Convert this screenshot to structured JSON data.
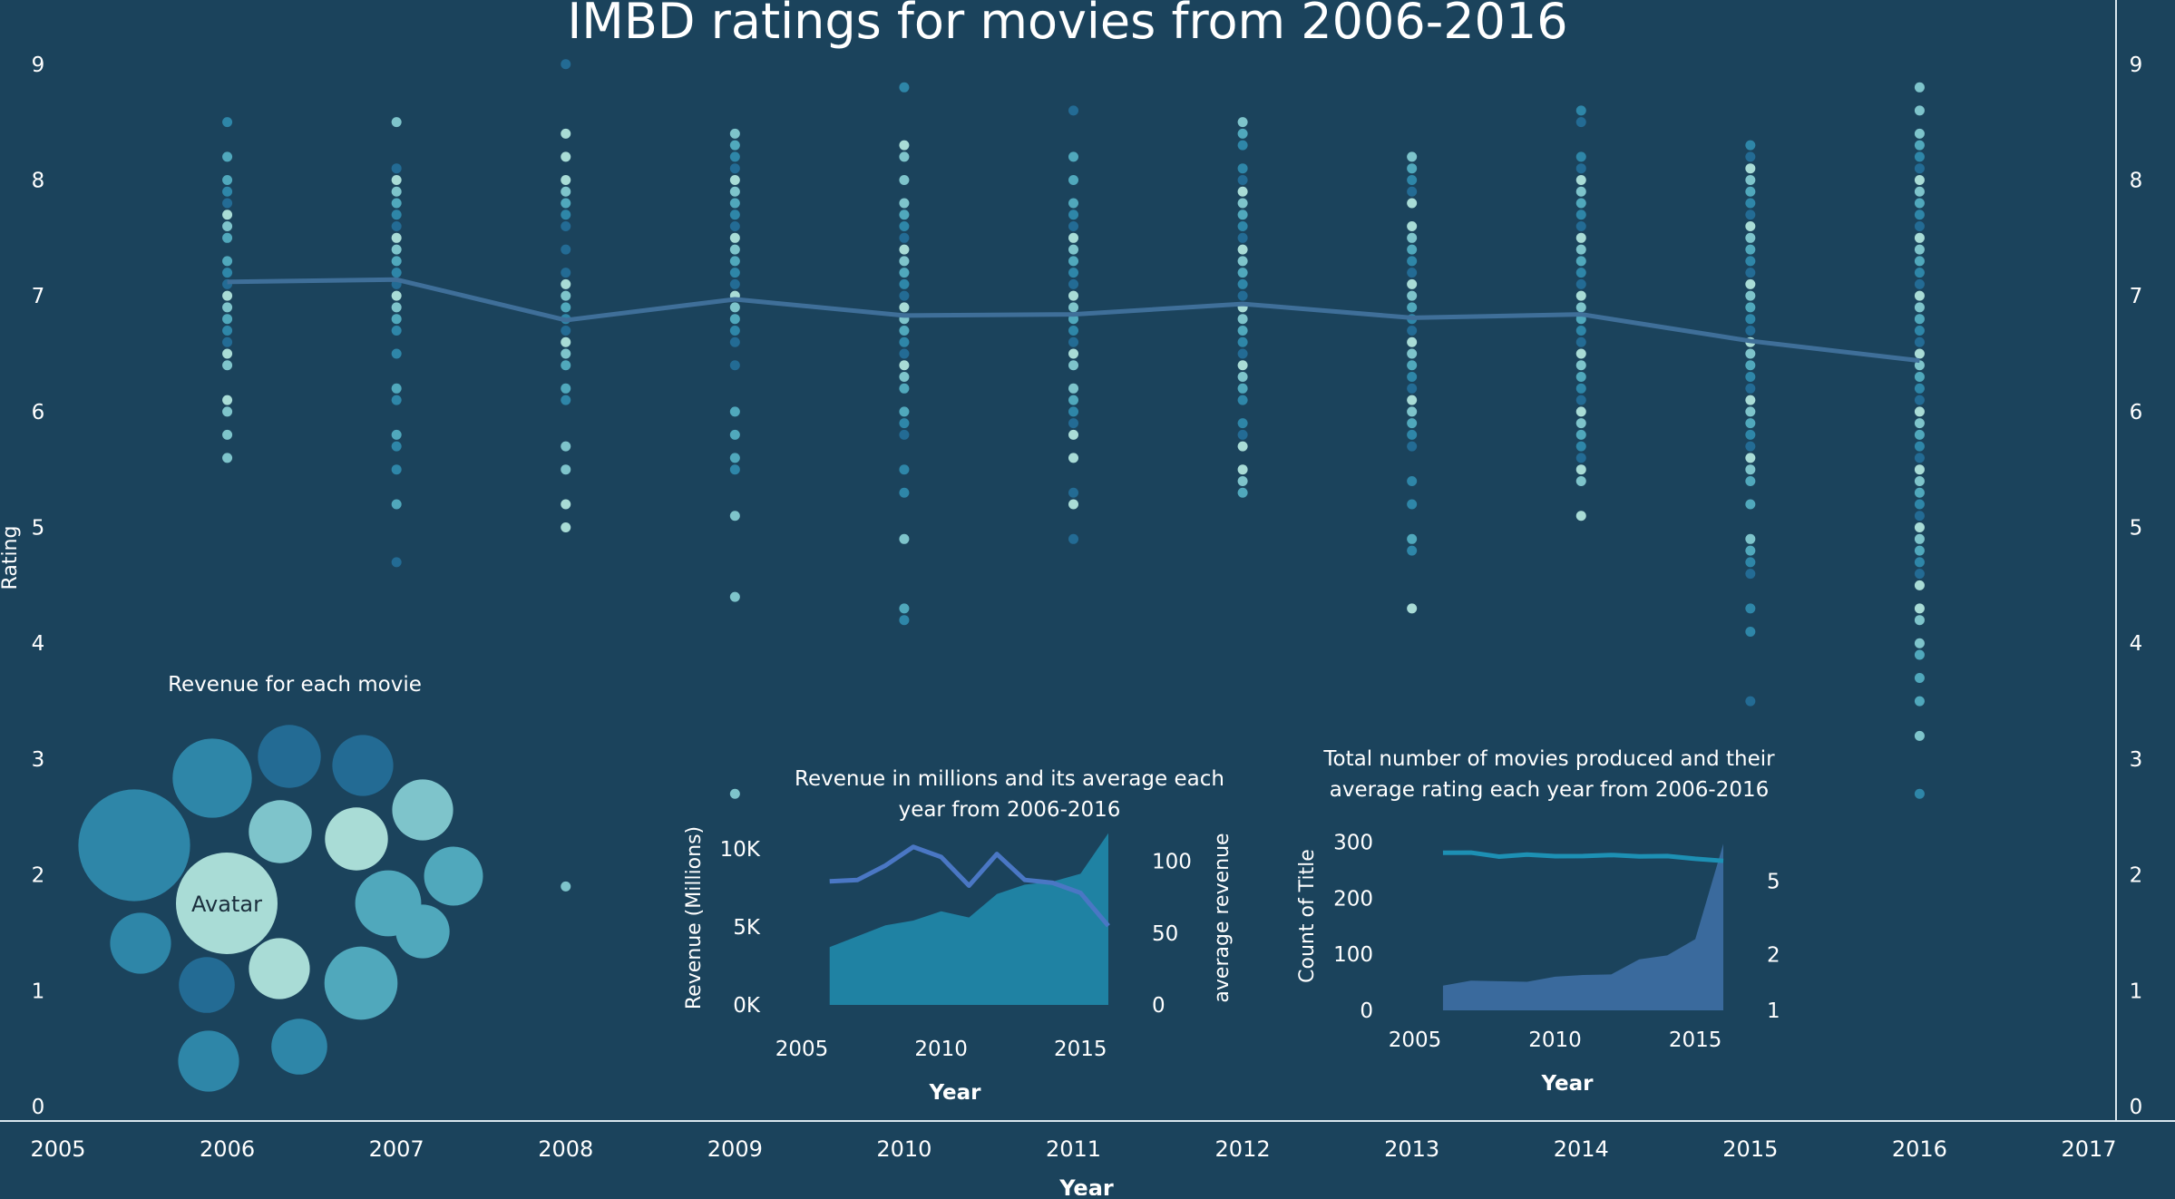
{
  "colors": {
    "background": "#1b435c",
    "axis": "#d9e6ee",
    "text": "#ffffff",
    "trend_line": "#3f6f99",
    "revenue_area": "#1f82a3",
    "revenue_line": "#4a77c4",
    "count_line": "#1d90b4",
    "count_area": "#3a6a9d",
    "dot_palette": [
      "#a9dcd6",
      "#7ec4cb",
      "#50a8bc",
      "#2e86a8",
      "#236b94"
    ]
  },
  "chart_data": [
    {
      "id": "main",
      "type": "scatter",
      "title": "IMBD ratings for movies from 2006-2016",
      "xlabel": "Year",
      "ylabel": "Rating",
      "xlim": [
        2005,
        2017
      ],
      "ylim": [
        0,
        9.1
      ],
      "x_ticks": [
        "2005",
        "2006",
        "2007",
        "2008",
        "2009",
        "2010",
        "2011",
        "2012",
        "2013",
        "2014",
        "2015",
        "2016",
        "2017"
      ],
      "y_ticks": [
        "0",
        "1",
        "2",
        "3",
        "4",
        "5",
        "6",
        "7",
        "8",
        "9"
      ],
      "grid": false,
      "points": [
        {
          "year": 2006,
          "ratings": [
            8.5,
            8.2,
            8.0,
            7.9,
            7.8,
            7.7,
            7.6,
            7.5,
            7.3,
            7.2,
            7.1,
            7.0,
            6.9,
            6.8,
            6.7,
            6.6,
            6.5,
            6.4,
            6.1,
            6.0,
            5.8,
            5.6
          ]
        },
        {
          "year": 2007,
          "ratings": [
            8.5,
            8.1,
            8.0,
            7.9,
            7.8,
            7.7,
            7.6,
            7.5,
            7.4,
            7.3,
            7.2,
            7.1,
            7.0,
            6.9,
            6.8,
            6.7,
            6.5,
            6.2,
            6.1,
            5.8,
            5.7,
            5.5,
            5.2,
            4.7
          ]
        },
        {
          "year": 2008,
          "ratings": [
            9.0,
            8.4,
            8.2,
            8.0,
            7.9,
            7.8,
            7.7,
            7.6,
            7.4,
            7.2,
            7.1,
            7.0,
            6.9,
            6.8,
            6.7,
            6.6,
            6.5,
            6.4,
            6.2,
            6.1,
            5.7,
            5.5,
            5.2,
            5.0,
            1.9
          ]
        },
        {
          "year": 2009,
          "ratings": [
            8.4,
            8.3,
            8.2,
            8.1,
            8.0,
            7.9,
            7.8,
            7.7,
            7.6,
            7.5,
            7.4,
            7.3,
            7.2,
            7.1,
            7.0,
            6.9,
            6.8,
            6.7,
            6.6,
            6.4,
            6.0,
            5.8,
            5.6,
            5.5,
            5.1,
            4.4,
            2.7
          ]
        },
        {
          "year": 2010,
          "ratings": [
            8.8,
            8.3,
            8.2,
            8.0,
            7.8,
            7.7,
            7.6,
            7.5,
            7.4,
            7.3,
            7.2,
            7.1,
            7.0,
            6.9,
            6.8,
            6.7,
            6.6,
            6.5,
            6.4,
            6.3,
            6.2,
            6.0,
            5.9,
            5.8,
            5.5,
            5.3,
            4.9,
            4.3,
            4.2
          ]
        },
        {
          "year": 2011,
          "ratings": [
            8.6,
            8.2,
            8.0,
            7.8,
            7.7,
            7.6,
            7.5,
            7.4,
            7.3,
            7.2,
            7.1,
            7.0,
            6.9,
            6.8,
            6.7,
            6.6,
            6.5,
            6.4,
            6.2,
            6.1,
            6.0,
            5.9,
            5.8,
            5.6,
            5.3,
            5.2,
            4.9
          ]
        },
        {
          "year": 2012,
          "ratings": [
            8.5,
            8.4,
            8.3,
            8.1,
            8.0,
            7.9,
            7.8,
            7.7,
            7.6,
            7.5,
            7.4,
            7.3,
            7.2,
            7.1,
            7.0,
            6.9,
            6.8,
            6.7,
            6.6,
            6.5,
            6.4,
            6.3,
            6.2,
            6.1,
            5.9,
            5.8,
            5.7,
            5.5,
            5.4,
            5.3
          ]
        },
        {
          "year": 2013,
          "ratings": [
            8.2,
            8.1,
            8.0,
            7.9,
            7.8,
            7.6,
            7.5,
            7.4,
            7.3,
            7.2,
            7.1,
            7.0,
            6.9,
            6.8,
            6.7,
            6.6,
            6.5,
            6.4,
            6.3,
            6.2,
            6.1,
            6.0,
            5.9,
            5.8,
            5.7,
            5.4,
            5.2,
            4.9,
            4.8,
            4.3
          ]
        },
        {
          "year": 2014,
          "ratings": [
            8.6,
            8.5,
            8.2,
            8.1,
            8.0,
            7.9,
            7.8,
            7.7,
            7.6,
            7.5,
            7.4,
            7.3,
            7.2,
            7.1,
            7.0,
            6.9,
            6.8,
            6.7,
            6.6,
            6.5,
            6.4,
            6.3,
            6.2,
            6.1,
            6.0,
            5.9,
            5.8,
            5.7,
            5.6,
            5.5,
            5.4,
            5.1
          ]
        },
        {
          "year": 2015,
          "ratings": [
            8.3,
            8.2,
            8.1,
            8.0,
            7.9,
            7.8,
            7.7,
            7.6,
            7.5,
            7.4,
            7.3,
            7.2,
            7.1,
            7.0,
            6.9,
            6.8,
            6.7,
            6.6,
            6.5,
            6.4,
            6.3,
            6.2,
            6.1,
            6.0,
            5.9,
            5.8,
            5.7,
            5.6,
            5.5,
            5.4,
            5.2,
            4.9,
            4.8,
            4.7,
            4.6,
            4.3,
            4.1,
            3.5
          ]
        },
        {
          "year": 2016,
          "ratings": [
            8.8,
            8.6,
            8.4,
            8.3,
            8.2,
            8.1,
            8.0,
            7.9,
            7.8,
            7.7,
            7.6,
            7.5,
            7.4,
            7.3,
            7.2,
            7.1,
            7.0,
            6.9,
            6.8,
            6.7,
            6.6,
            6.5,
            6.4,
            6.3,
            6.2,
            6.1,
            6.0,
            5.9,
            5.8,
            5.7,
            5.6,
            5.5,
            5.4,
            5.3,
            5.2,
            5.1,
            5.0,
            4.9,
            4.8,
            4.7,
            4.6,
            4.5,
            4.3,
            4.2,
            4.0,
            3.9,
            3.7,
            3.5,
            3.2,
            2.7
          ]
        }
      ],
      "average_line": {
        "x": [
          2006,
          2007,
          2008,
          2009,
          2010,
          2011,
          2012,
          2013,
          2014,
          2015,
          2016
        ],
        "values": [
          7.12,
          7.14,
          6.79,
          6.97,
          6.83,
          6.84,
          6.93,
          6.81,
          6.84,
          6.61,
          6.44
        ]
      }
    },
    {
      "id": "bubbles",
      "type": "bubble",
      "title": "Revenue for each movie",
      "labels": [
        "Avatar"
      ],
      "bubbles": [
        {
          "label": "Avatar",
          "size": 1.0,
          "shade": 0
        },
        {
          "label": "",
          "size": 1.1,
          "shade": 3
        },
        {
          "label": "",
          "size": 0.78,
          "shade": 3
        },
        {
          "label": "",
          "size": 0.62,
          "shade": 4
        },
        {
          "label": "",
          "size": 0.6,
          "shade": 4
        },
        {
          "label": "",
          "size": 0.6,
          "shade": 1
        },
        {
          "label": "",
          "size": 0.62,
          "shade": 1
        },
        {
          "label": "",
          "size": 0.62,
          "shade": 0
        },
        {
          "label": "",
          "size": 0.58,
          "shade": 2
        },
        {
          "label": "",
          "size": 0.65,
          "shade": 2
        },
        {
          "label": "",
          "size": 0.6,
          "shade": 3
        },
        {
          "label": "",
          "size": 0.6,
          "shade": 0
        },
        {
          "label": "",
          "size": 0.55,
          "shade": 4
        },
        {
          "label": "",
          "size": 0.72,
          "shade": 2
        },
        {
          "label": "",
          "size": 0.6,
          "shade": 3
        },
        {
          "label": "",
          "size": 0.55,
          "shade": 3
        },
        {
          "label": "",
          "size": 0.53,
          "shade": 2
        }
      ]
    },
    {
      "id": "revenue",
      "type": "area",
      "title_lines": [
        "Revenue in millions and its average each",
        "year from 2006-2016"
      ],
      "xlabel": "Year",
      "ylabel_left": "Revenue (Millions)",
      "ylabel_right": "average revenue",
      "x_ticks": [
        "2005",
        "2010",
        "2015"
      ],
      "y_ticks_left": [
        "0K",
        "5K",
        "10K"
      ],
      "y_ticks_right": [
        "0",
        "50",
        "100"
      ],
      "x": [
        2006,
        2007,
        2008,
        2009,
        2010,
        2011,
        2012,
        2013,
        2014,
        2015,
        2016
      ],
      "revenue": [
        3700,
        4400,
        5100,
        5400,
        6000,
        5600,
        7100,
        7700,
        7900,
        8400,
        11000
      ],
      "average_revenue": [
        86,
        87,
        97,
        110,
        103,
        83,
        105,
        87,
        85,
        78,
        55
      ]
    },
    {
      "id": "count",
      "type": "area",
      "title_lines": [
        "Total number of movies produced and their",
        "average rating each year from 2006-2016"
      ],
      "xlabel": "Year",
      "ylabel_left": "Count of Title",
      "x_ticks": [
        "2005",
        "2010",
        "2015"
      ],
      "y_ticks_left": [
        "0",
        "100",
        "200",
        "300"
      ],
      "y_ticks_right": [
        "1",
        "2",
        "5"
      ],
      "x": [
        2006,
        2007,
        2008,
        2009,
        2010,
        2011,
        2012,
        2013,
        2014,
        2015,
        2016
      ],
      "count": [
        44,
        53,
        52,
        51,
        60,
        63,
        64,
        91,
        98,
        127,
        297
      ],
      "average_rating": [
        7.12,
        7.14,
        6.79,
        6.97,
        6.83,
        6.84,
        6.93,
        6.81,
        6.84,
        6.61,
        6.44
      ]
    }
  ]
}
